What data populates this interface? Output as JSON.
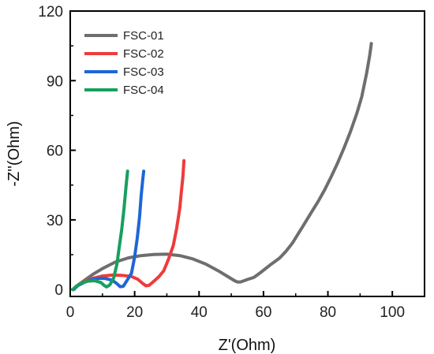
{
  "chart_data": {
    "type": "line",
    "xlabel": "Z'(Ohm)",
    "ylabel": "-Z''(Ohm)",
    "xlim": [
      0,
      110
    ],
    "ylim": [
      -3,
      120
    ],
    "x_ticks": [
      0,
      20,
      40,
      60,
      80,
      100
    ],
    "y_ticks": [
      0,
      30,
      60,
      90,
      120
    ],
    "grid": false,
    "legend_position": "top-left",
    "series": [
      {
        "name": "FSC-01",
        "color": "#6e6e6e",
        "points": [
          [
            0.8,
            0
          ],
          [
            2,
            1.5
          ],
          [
            4,
            3.5
          ],
          [
            7,
            6.5
          ],
          [
            10,
            9
          ],
          [
            14,
            11.8
          ],
          [
            18,
            13.6
          ],
          [
            22,
            14.6
          ],
          [
            26,
            15.1
          ],
          [
            30,
            15.2
          ],
          [
            34,
            14.6
          ],
          [
            38,
            13.2
          ],
          [
            42,
            11
          ],
          [
            46,
            8
          ],
          [
            49,
            5.5
          ],
          [
            51,
            3.8
          ],
          [
            52,
            3.2
          ],
          [
            53,
            3.3
          ],
          [
            55,
            4.3
          ],
          [
            57,
            5.2
          ],
          [
            59,
            7.2
          ],
          [
            62,
            10.5
          ],
          [
            65,
            13.5
          ],
          [
            67,
            16.5
          ],
          [
            69,
            20
          ],
          [
            71,
            24.5
          ],
          [
            73,
            29
          ],
          [
            75,
            33.5
          ],
          [
            77,
            38
          ],
          [
            79,
            43
          ],
          [
            81,
            48.5
          ],
          [
            83,
            54.5
          ],
          [
            85,
            61
          ],
          [
            87,
            68
          ],
          [
            89,
            76
          ],
          [
            90.5,
            83
          ],
          [
            92,
            93
          ],
          [
            93,
            101
          ],
          [
            93.5,
            106
          ]
        ]
      },
      {
        "name": "FSC-02",
        "color": "#ee3b3b",
        "points": [
          [
            0.8,
            0
          ],
          [
            2,
            1.5
          ],
          [
            4,
            3.3
          ],
          [
            7,
            4.8
          ],
          [
            10,
            5.8
          ],
          [
            13,
            6.2
          ],
          [
            16,
            6.1
          ],
          [
            19,
            5.6
          ],
          [
            21,
            4.4
          ],
          [
            22.5,
            2.6
          ],
          [
            23.5,
            1.6
          ],
          [
            24.5,
            1.8
          ],
          [
            26,
            3.6
          ],
          [
            27.5,
            5.5
          ],
          [
            29,
            8
          ],
          [
            30.5,
            13
          ],
          [
            32,
            19
          ],
          [
            33,
            26
          ],
          [
            34,
            35
          ],
          [
            34.5,
            42
          ],
          [
            35,
            49
          ],
          [
            35.3,
            55.5
          ]
        ]
      },
      {
        "name": "FSC-03",
        "color": "#1f66d6",
        "points": [
          [
            1,
            0
          ],
          [
            2.5,
            1.8
          ],
          [
            4.5,
            3.2
          ],
          [
            6.5,
            4.2
          ],
          [
            9,
            4.8
          ],
          [
            11,
            4.7
          ],
          [
            13,
            4
          ],
          [
            14.5,
            2.5
          ],
          [
            15.5,
            1.2
          ],
          [
            16.5,
            1.4
          ],
          [
            17.5,
            3.6
          ],
          [
            19,
            7
          ],
          [
            20,
            14
          ],
          [
            20.8,
            22
          ],
          [
            21.5,
            31
          ],
          [
            22,
            40
          ],
          [
            22.5,
            47
          ],
          [
            22.8,
            51
          ]
        ]
      },
      {
        "name": "FSC-04",
        "color": "#17a05d",
        "points": [
          [
            0.8,
            0
          ],
          [
            2,
            1.5
          ],
          [
            3.5,
            2.8
          ],
          [
            5.5,
            3.6
          ],
          [
            7.5,
            3.8
          ],
          [
            9.5,
            3
          ],
          [
            10.5,
            1.8
          ],
          [
            11.3,
            1.1
          ],
          [
            12.3,
            2
          ],
          [
            13.5,
            5
          ],
          [
            14.5,
            11
          ],
          [
            15.2,
            18
          ],
          [
            16,
            26
          ],
          [
            16.7,
            35
          ],
          [
            17.3,
            44
          ],
          [
            17.8,
            51
          ]
        ]
      }
    ]
  }
}
